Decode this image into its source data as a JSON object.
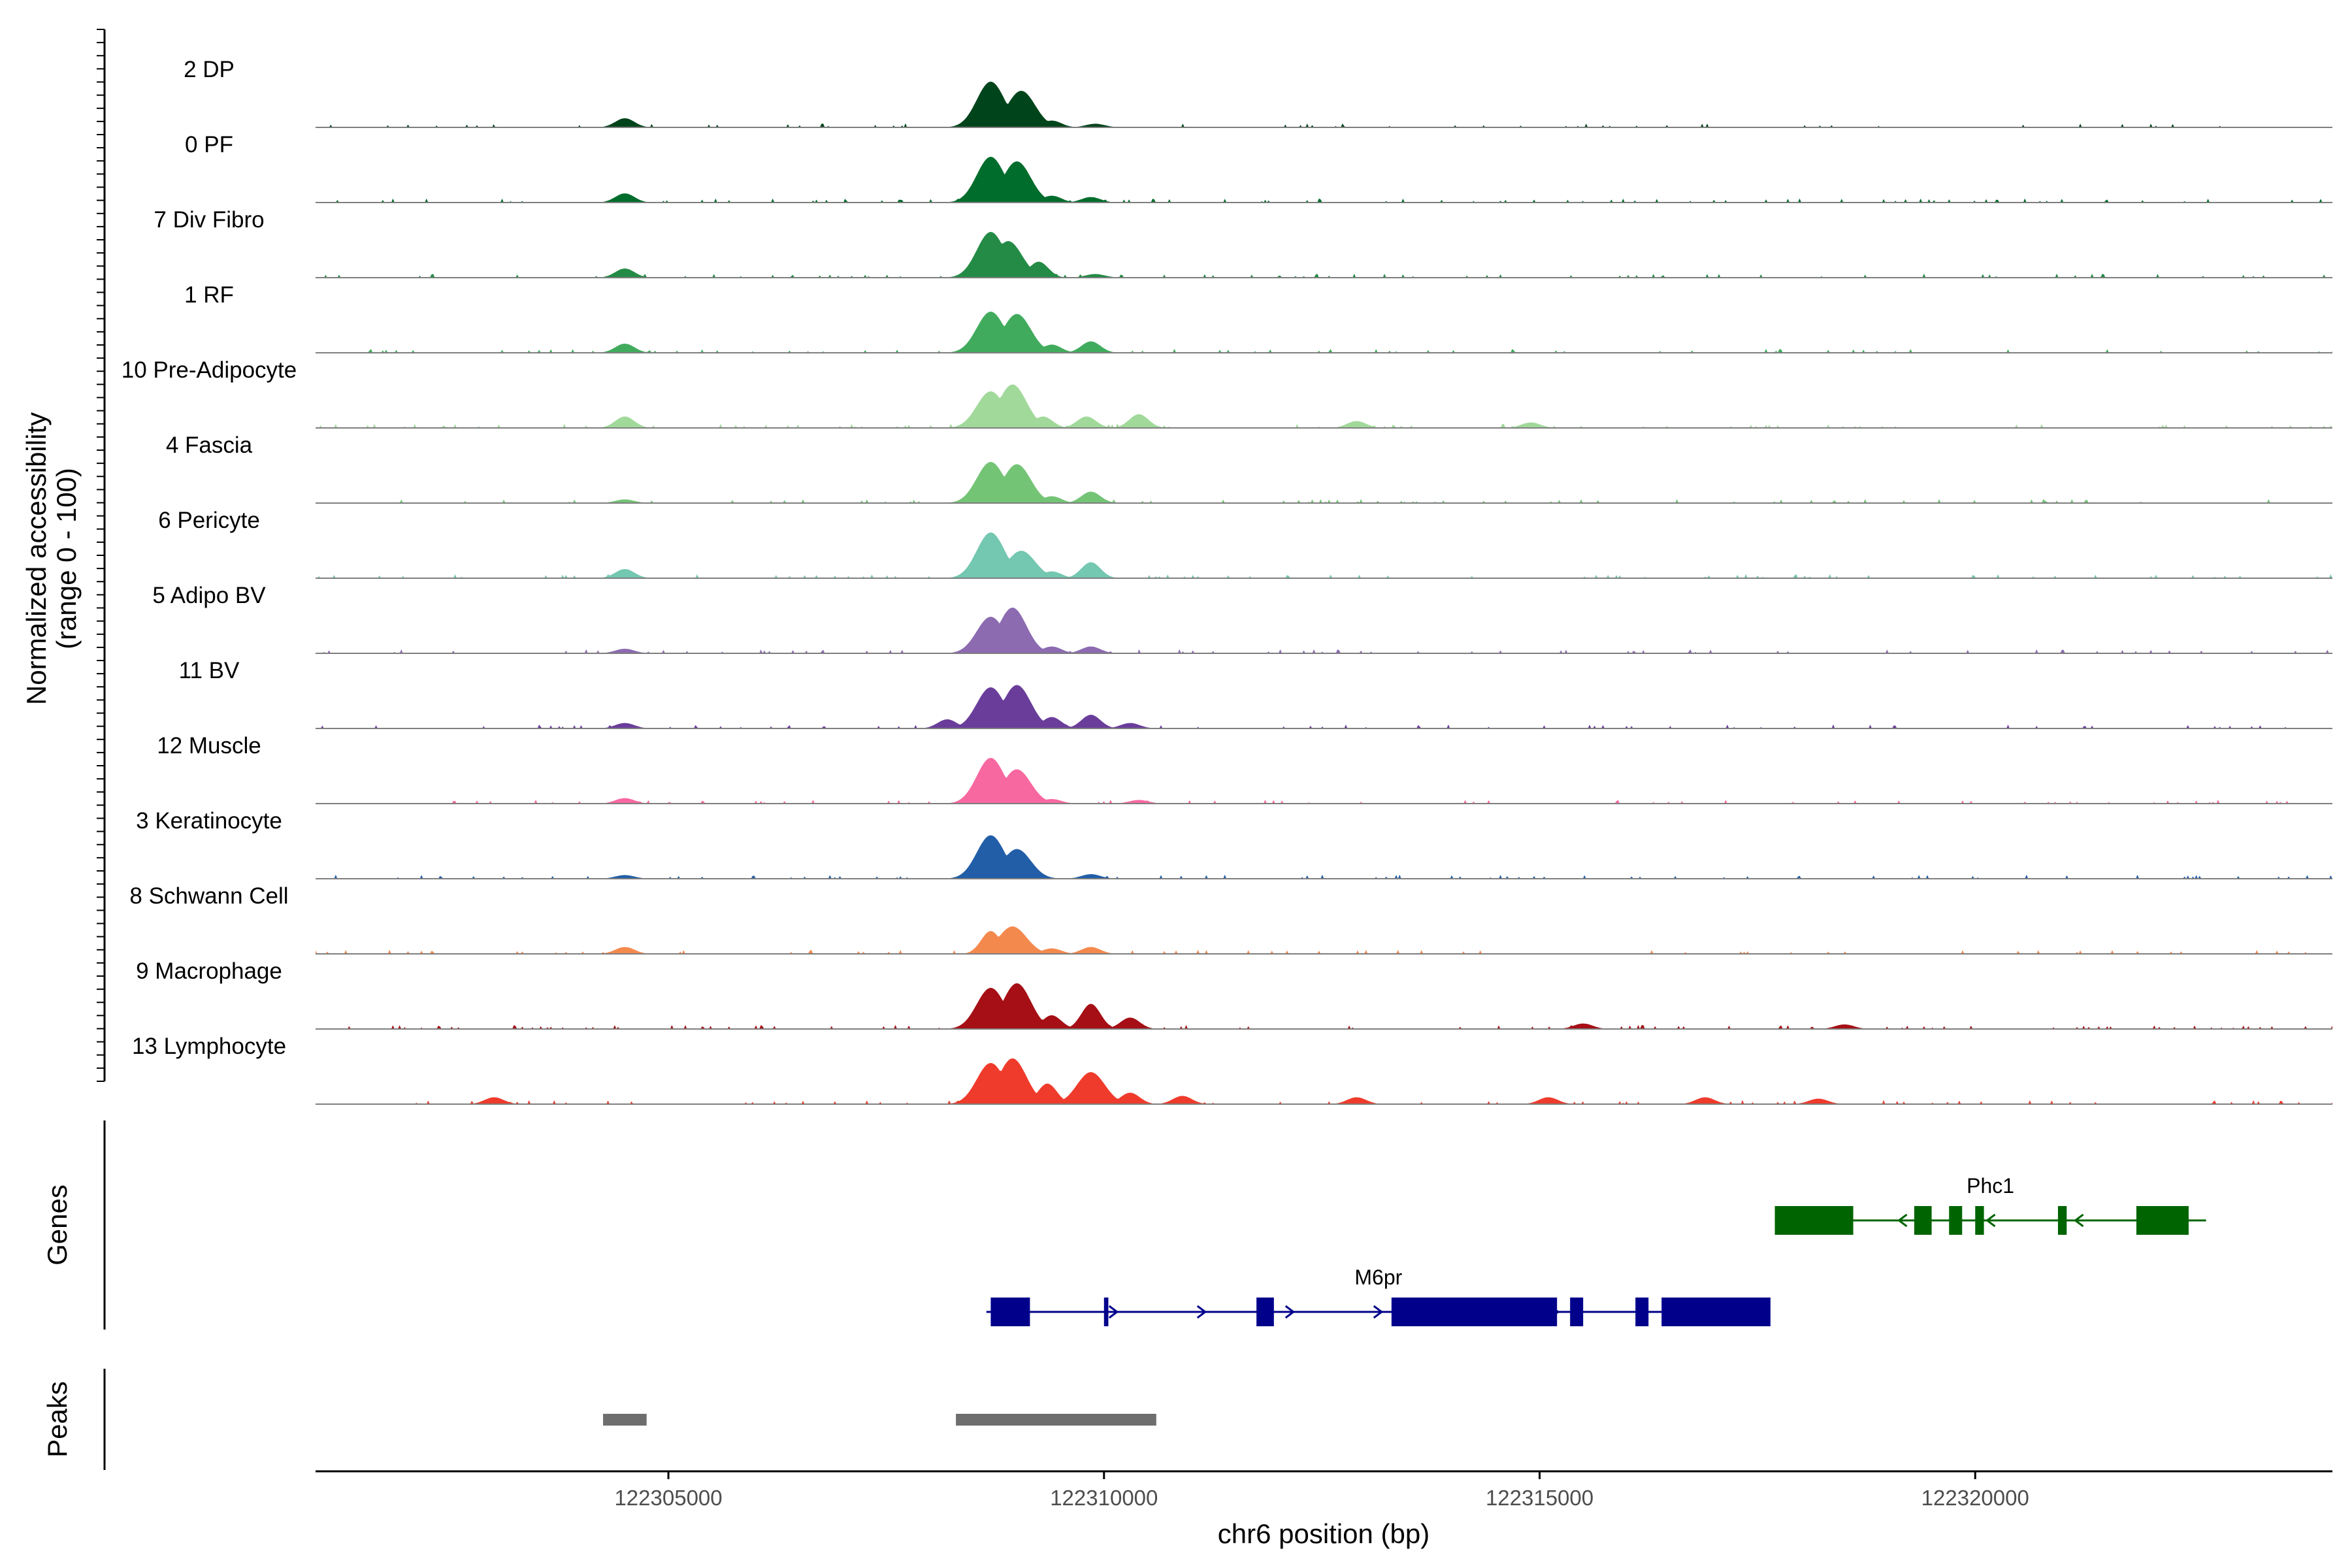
{
  "chart_data": {
    "type": "area",
    "title": "",
    "xlabel": "chr6 position (bp)",
    "ylabel": "Normalized accessibility\n(range 0 - 100)",
    "ylabel_lines": [
      "Normalized accessibility",
      "(range 0 - 100)"
    ],
    "xlim": [
      122300950,
      122324100
    ],
    "ylim": [
      0,
      100
    ],
    "x_ticks": [
      122305000,
      122310000,
      122315000,
      122320000
    ],
    "x_tick_labels": [
      "122305000",
      "122310000",
      "122315000",
      "122320000"
    ],
    "track_labels": {
      "genes": "Genes",
      "peaks": "Peaks"
    },
    "tracks": [
      {
        "label": "2 DP",
        "color": "#00441b",
        "peaks": [
          [
            122304500,
            20
          ],
          [
            122308700,
            100
          ],
          [
            122309050,
            80
          ],
          [
            122309400,
            15
          ],
          [
            122309900,
            8
          ]
        ]
      },
      {
        "label": "0 PF",
        "color": "#006d2c",
        "peaks": [
          [
            122304500,
            20
          ],
          [
            122308700,
            100
          ],
          [
            122309000,
            90
          ],
          [
            122309400,
            15
          ],
          [
            122309850,
            12
          ]
        ]
      },
      {
        "label": "7 Div Fibro",
        "color": "#238b45",
        "peaks": [
          [
            122304500,
            20
          ],
          [
            122308700,
            100
          ],
          [
            122308900,
            80
          ],
          [
            122309250,
            35
          ],
          [
            122309900,
            8
          ]
        ]
      },
      {
        "label": "1 RF",
        "color": "#41ab5d",
        "peaks": [
          [
            122304500,
            20
          ],
          [
            122308700,
            90
          ],
          [
            122309000,
            85
          ],
          [
            122309400,
            18
          ],
          [
            122309850,
            25
          ]
        ]
      },
      {
        "label": "10 Pre-Adipocyte",
        "color": "#a1d99b",
        "peaks": [
          [
            122304500,
            25
          ],
          [
            122308700,
            80
          ],
          [
            122308950,
            95
          ],
          [
            122309300,
            25
          ],
          [
            122309800,
            25
          ],
          [
            122310400,
            30
          ],
          [
            122312900,
            15
          ],
          [
            122314900,
            12
          ]
        ]
      },
      {
        "label": "4 Fascia",
        "color": "#74c476",
        "peaks": [
          [
            122304500,
            8
          ],
          [
            122308700,
            90
          ],
          [
            122309000,
            85
          ],
          [
            122309400,
            15
          ],
          [
            122309850,
            25
          ]
        ]
      },
      {
        "label": "6 Pericyte",
        "color": "#74c7b0",
        "peaks": [
          [
            122304500,
            20
          ],
          [
            122308700,
            100
          ],
          [
            122309050,
            60
          ],
          [
            122309400,
            15
          ],
          [
            122309850,
            35
          ]
        ]
      },
      {
        "label": "5 Adipo BV",
        "color": "#8c6bb1",
        "peaks": [
          [
            122304500,
            10
          ],
          [
            122308700,
            80
          ],
          [
            122308950,
            100
          ],
          [
            122309400,
            15
          ],
          [
            122309850,
            15
          ]
        ]
      },
      {
        "label": "11 BV",
        "color": "#6a3d9a",
        "peaks": [
          [
            122304500,
            12
          ],
          [
            122308200,
            20
          ],
          [
            122308700,
            90
          ],
          [
            122309000,
            95
          ],
          [
            122309400,
            25
          ],
          [
            122309850,
            30
          ],
          [
            122310300,
            12
          ]
        ]
      },
      {
        "label": "12 Muscle",
        "color": "#f768a1",
        "peaks": [
          [
            122304500,
            12
          ],
          [
            122308700,
            100
          ],
          [
            122309000,
            75
          ],
          [
            122309400,
            10
          ],
          [
            122310400,
            8
          ]
        ]
      },
      {
        "label": "3 Keratinocyte",
        "color": "#225ea8",
        "peaks": [
          [
            122304500,
            8
          ],
          [
            122308700,
            95
          ],
          [
            122309000,
            65
          ],
          [
            122309850,
            10
          ]
        ]
      },
      {
        "label": "8 Schwann Cell",
        "color": "#f4894e",
        "peaks": [
          [
            122304500,
            15
          ],
          [
            122308700,
            50
          ],
          [
            122308950,
            60
          ],
          [
            122309400,
            12
          ],
          [
            122309850,
            15
          ]
        ]
      },
      {
        "label": "9 Macrophage",
        "color": "#a50f15",
        "peaks": [
          [
            122308700,
            90
          ],
          [
            122309000,
            100
          ],
          [
            122309400,
            30
          ],
          [
            122309850,
            55
          ],
          [
            122310300,
            25
          ],
          [
            122315500,
            12
          ],
          [
            122318500,
            10
          ]
        ]
      },
      {
        "label": "13 Lymphocyte",
        "color": "#ef3b2c",
        "peaks": [
          [
            122303000,
            15
          ],
          [
            122308700,
            90
          ],
          [
            122308950,
            100
          ],
          [
            122309350,
            45
          ],
          [
            122309850,
            70
          ],
          [
            122310300,
            25
          ],
          [
            122310900,
            18
          ],
          [
            122312900,
            15
          ],
          [
            122315100,
            15
          ],
          [
            122316900,
            15
          ],
          [
            122318200,
            12
          ]
        ]
      }
    ],
    "genes": [
      {
        "name": "Phc1",
        "color": "#006400",
        "strand": "-",
        "start": 122317700,
        "end": 122322650,
        "exons": [
          [
            122317700,
            122318600
          ],
          [
            122319300,
            122319500
          ],
          [
            122319700,
            122319850
          ],
          [
            122320000,
            122320100
          ],
          [
            122320950,
            122321050
          ],
          [
            122321850,
            122322450
          ]
        ]
      },
      {
        "name": "M6pr",
        "color": "#00008b",
        "strand": "+",
        "start": 122308650,
        "end": 122317650,
        "exons": [
          [
            122308700,
            122309150
          ],
          [
            122310000,
            122310050
          ],
          [
            122311750,
            122311950
          ],
          [
            122313300,
            122315200
          ],
          [
            122315350,
            122315500
          ],
          [
            122316100,
            122316250
          ],
          [
            122316400,
            122317650
          ]
        ]
      }
    ],
    "peak_regions": [
      [
        122304250,
        122304750
      ],
      [
        122308300,
        122310600
      ]
    ]
  }
}
